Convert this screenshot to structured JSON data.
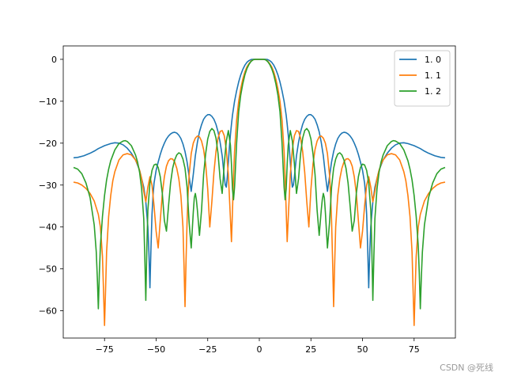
{
  "chart_data": {
    "type": "line",
    "xlim": [
      -95,
      95
    ],
    "ylim": [
      -66.5,
      3.2
    ],
    "xticks": [
      -75,
      -50,
      -25,
      0,
      25,
      50,
      75
    ],
    "yticks": [
      0,
      -10,
      -20,
      -30,
      -40,
      -50,
      -60
    ],
    "xtick_labels": [
      "−75",
      "−50",
      "−25",
      "0",
      "25",
      "50",
      "75"
    ],
    "ytick_labels": [
      "0",
      "−10",
      "−20",
      "−30",
      "−40",
      "−50",
      "−60"
    ],
    "legend_placement": "top-right",
    "grid": false,
    "series": [
      {
        "name": "1. 0",
        "color": "#1f77b4",
        "x": [
          -90,
          -88,
          -85,
          -82,
          -80,
          -78,
          -75,
          -72,
          -70,
          -68,
          -66,
          -64,
          -62,
          -60,
          -58,
          -56,
          -55,
          -54,
          -53.5,
          -53,
          -52.5,
          -52,
          -51.5,
          -51,
          -50,
          -49,
          -48,
          -47,
          -46,
          -45,
          -44,
          -43,
          -42,
          -41,
          -40,
          -39,
          -38,
          -37,
          -36,
          -35,
          -34,
          -33,
          -32,
          -31,
          -30,
          -29,
          -28,
          -27,
          -26,
          -25,
          -24,
          -23,
          -22,
          -21,
          -20,
          -19,
          -18,
          -17,
          -16.5,
          -16,
          -15.5,
          -15,
          -14.5,
          -14,
          -13.5,
          -13,
          -12,
          -11,
          -10,
          -9,
          -8,
          -7,
          -6,
          -5,
          -4,
          -3,
          -2,
          -1,
          0,
          1,
          2,
          3,
          4,
          5,
          6,
          7,
          8,
          9,
          10,
          11,
          12,
          13,
          13.5,
          14,
          14.5,
          15,
          15.5,
          16,
          16.5,
          17,
          18,
          19,
          20,
          21,
          22,
          23,
          24,
          25,
          26,
          27,
          28,
          29,
          30,
          31,
          32,
          33,
          34,
          35,
          36,
          37,
          38,
          39,
          40,
          41,
          42,
          43,
          44,
          45,
          46,
          47,
          48,
          49,
          50,
          51,
          51.5,
          52,
          52.5,
          53,
          53.5,
          54,
          55,
          56,
          58,
          60,
          62,
          64,
          66,
          68,
          70,
          72,
          75,
          78,
          80,
          82,
          85,
          88,
          90
        ],
        "y": [
          -23.5,
          -23.4,
          -23.0,
          -22.4,
          -21.9,
          -21.3,
          -20.6,
          -20.1,
          -19.9,
          -20.0,
          -20.4,
          -21.2,
          -22.4,
          -24.0,
          -26.5,
          -30.5,
          -34.0,
          -40.0,
          -46.0,
          -54.5,
          -45.0,
          -37.0,
          -32.5,
          -29.5,
          -26.5,
          -24.5,
          -22.7,
          -21.2,
          -20.0,
          -19.0,
          -18.3,
          -17.8,
          -17.5,
          -17.4,
          -17.6,
          -18.1,
          -18.9,
          -20.2,
          -22.0,
          -24.5,
          -28.0,
          -31.5,
          -27.5,
          -23.0,
          -19.8,
          -17.3,
          -15.6,
          -14.3,
          -13.6,
          -13.2,
          -13.2,
          -13.6,
          -14.3,
          -15.5,
          -17.3,
          -19.8,
          -23.0,
          -28.0,
          -30.0,
          -30.5,
          -28.0,
          -24.5,
          -21.0,
          -18.0,
          -15.5,
          -13.3,
          -10.0,
          -7.5,
          -5.4,
          -3.7,
          -2.4,
          -1.4,
          -0.7,
          -0.3,
          -0.05,
          0.0,
          0.0,
          0.0,
          0.0,
          0.0,
          0.0,
          0.0,
          -0.05,
          -0.3,
          -0.7,
          -1.4,
          -2.4,
          -3.7,
          -5.4,
          -7.5,
          -10.0,
          -13.3,
          -15.5,
          -18.0,
          -21.0,
          -24.5,
          -28.0,
          -30.5,
          -30.0,
          -28.0,
          -23.0,
          -19.8,
          -17.3,
          -15.5,
          -14.3,
          -13.6,
          -13.2,
          -13.2,
          -13.6,
          -14.3,
          -15.6,
          -17.3,
          -19.8,
          -23.0,
          -27.5,
          -31.5,
          -28.0,
          -24.5,
          -22.0,
          -20.2,
          -18.9,
          -18.1,
          -17.6,
          -17.4,
          -17.5,
          -17.8,
          -18.3,
          -19.0,
          -20.0,
          -21.2,
          -22.7,
          -24.5,
          -26.5,
          -29.5,
          -32.5,
          -37.0,
          -45.0,
          -54.5,
          -46.0,
          -40.0,
          -34.0,
          -30.5,
          -26.5,
          -24.0,
          -22.4,
          -21.2,
          -20.4,
          -20.0,
          -19.9,
          -20.1,
          -20.6,
          -21.3,
          -21.9,
          -22.4,
          -23.0,
          -23.4,
          -23.5
        ]
      },
      {
        "name": "1. 1",
        "color": "#ff7f0e",
        "x": [
          -90,
          -88,
          -86,
          -84,
          -82,
          -80,
          -78,
          -77,
          -76,
          -75.5,
          -75,
          -74.5,
          -74,
          -73,
          -72,
          -71,
          -70,
          -68,
          -66,
          -64,
          -62,
          -60,
          -59,
          -58,
          -57,
          -56,
          -55,
          -54,
          -53,
          -52,
          -51,
          -50,
          -49,
          -48,
          -47,
          -46,
          -45,
          -44,
          -43,
          -42,
          -41,
          -40,
          -39,
          -38,
          -37,
          -36.5,
          -36,
          -35.5,
          -35,
          -34.5,
          -34,
          -33,
          -32,
          -31,
          -30,
          -29,
          -28,
          -27,
          -26,
          -25,
          -24,
          -23,
          -22,
          -21,
          -20,
          -19,
          -18,
          -17,
          -16,
          -15,
          -14,
          -13.5,
          -13,
          -12.5,
          -12,
          -11,
          -10,
          -9,
          -8,
          -7,
          -6,
          -5,
          -4,
          -3,
          -2,
          -1,
          0,
          1,
          2,
          3,
          4,
          5,
          6,
          7,
          8,
          9,
          10,
          11,
          12,
          12.5,
          13,
          13.5,
          14,
          15,
          16,
          17,
          18,
          19,
          20,
          21,
          22,
          23,
          24,
          25,
          26,
          27,
          28,
          29,
          30,
          31,
          32,
          33,
          34,
          34.5,
          35,
          35.5,
          36,
          36.5,
          37,
          38,
          39,
          40,
          41,
          42,
          43,
          44,
          45,
          46,
          47,
          48,
          49,
          50,
          51,
          52,
          53,
          54,
          55,
          56,
          57,
          58,
          59,
          60,
          62,
          64,
          66,
          68,
          70,
          71,
          72,
          73,
          74,
          74.5,
          75,
          75.5,
          76,
          77,
          78,
          80,
          82,
          84,
          86,
          88,
          90
        ],
        "y": [
          -29.3,
          -29.5,
          -30.0,
          -30.8,
          -32.0,
          -33.8,
          -37.0,
          -40.0,
          -47.0,
          -55.0,
          -63.5,
          -55.0,
          -46.0,
          -37.5,
          -32.5,
          -29.0,
          -26.8,
          -24.0,
          -22.8,
          -22.5,
          -22.8,
          -24.0,
          -25.0,
          -26.5,
          -28.5,
          -31.5,
          -34.0,
          -30.5,
          -28.0,
          -30.0,
          -35.0,
          -41.0,
          -45.0,
          -38.5,
          -32.0,
          -28.0,
          -25.5,
          -24.2,
          -23.7,
          -23.8,
          -24.5,
          -26.0,
          -28.5,
          -32.5,
          -40.0,
          -49.0,
          -59.0,
          -48.0,
          -38.5,
          -32.0,
          -27.5,
          -22.5,
          -20.0,
          -18.8,
          -18.3,
          -18.5,
          -19.5,
          -21.5,
          -25.0,
          -31.0,
          -40.0,
          -34.0,
          -27.0,
          -22.0,
          -18.8,
          -17.2,
          -17.0,
          -18.2,
          -21.5,
          -27.5,
          -38.0,
          -43.5,
          -36.0,
          -28.0,
          -22.0,
          -14.5,
          -10.0,
          -7.0,
          -4.7,
          -3.0,
          -1.8,
          -1.0,
          -0.4,
          -0.1,
          0.0,
          0.0,
          0.0,
          0.0,
          0.0,
          -0.1,
          -0.4,
          -1.0,
          -1.8,
          -3.0,
          -4.7,
          -7.0,
          -10.0,
          -14.5,
          -22.0,
          -28.0,
          -36.0,
          -43.5,
          -38.0,
          -27.5,
          -21.5,
          -18.2,
          -17.0,
          -17.2,
          -18.8,
          -22.0,
          -27.0,
          -34.0,
          -40.0,
          -31.0,
          -25.0,
          -21.5,
          -19.5,
          -18.5,
          -18.3,
          -18.8,
          -20.0,
          -22.5,
          -27.5,
          -32.0,
          -38.5,
          -48.0,
          -59.0,
          -49.0,
          -40.0,
          -32.5,
          -28.5,
          -26.0,
          -24.5,
          -23.8,
          -23.7,
          -24.2,
          -25.5,
          -28.0,
          -32.0,
          -38.5,
          -45.0,
          -41.0,
          -35.0,
          -30.0,
          -28.0,
          -30.5,
          -34.0,
          -31.5,
          -28.5,
          -26.5,
          -25.0,
          -24.0,
          -22.8,
          -22.5,
          -22.8,
          -24.0,
          -26.8,
          -29.0,
          -32.5,
          -37.5,
          -46.0,
          -55.0,
          -63.5,
          -55.0,
          -47.0,
          -40.0,
          -37.0,
          -33.8,
          -32.0,
          -30.8,
          -30.0,
          -29.5,
          -29.3
        ]
      },
      {
        "name": "1. 2",
        "color": "#2ca02c",
        "x": [
          -90,
          -88,
          -86,
          -84,
          -82,
          -80,
          -79,
          -78.5,
          -78,
          -77.5,
          -77,
          -76,
          -75,
          -74,
          -73,
          -72,
          -70,
          -68,
          -66,
          -65,
          -64,
          -62,
          -60,
          -59,
          -58,
          -57,
          -56,
          -55.5,
          -55,
          -54.5,
          -54,
          -53,
          -52,
          -51,
          -50,
          -49,
          -48,
          -47,
          -46,
          -45,
          -44,
          -43,
          -42,
          -41,
          -40,
          -39,
          -38,
          -37,
          -36,
          -35,
          -34,
          -33,
          -32,
          -31.5,
          -31,
          -30.5,
          -30,
          -29,
          -28,
          -27,
          -26,
          -25,
          -24,
          -23,
          -22,
          -21,
          -20,
          -19,
          -18,
          -17,
          -16,
          -15,
          -14,
          -13.5,
          -13,
          -12.5,
          -12,
          -11,
          -10,
          -9,
          -8,
          -7,
          -6,
          -5,
          -4,
          -3,
          -2,
          -1,
          0,
          1,
          2,
          3,
          4,
          5,
          6,
          7,
          8,
          9,
          10,
          11,
          12,
          12.5,
          13,
          13.5,
          14,
          15,
          16,
          17,
          18,
          19,
          20,
          21,
          22,
          23,
          24,
          25,
          26,
          27,
          28,
          29,
          30,
          30.5,
          31,
          31.5,
          32,
          33,
          34,
          35,
          36,
          37,
          38,
          39,
          40,
          41,
          42,
          43,
          44,
          45,
          46,
          47,
          48,
          49,
          50,
          51,
          52,
          53,
          54,
          54.5,
          55,
          55.5,
          56,
          57,
          58,
          59,
          60,
          62,
          64,
          65,
          66,
          68,
          70,
          72,
          73,
          74,
          75,
          76,
          77,
          77.5,
          78,
          78.5,
          79,
          80,
          82,
          84,
          86,
          88,
          90
        ],
        "y": [
          -25.8,
          -26.2,
          -27.3,
          -29.5,
          -33.0,
          -39.5,
          -46.0,
          -52.0,
          -59.5,
          -51.0,
          -44.5,
          -37.5,
          -32.5,
          -28.8,
          -26.2,
          -24.2,
          -21.6,
          -20.1,
          -19.5,
          -19.4,
          -19.6,
          -20.6,
          -22.8,
          -24.5,
          -27.0,
          -31.0,
          -38.0,
          -47.0,
          -57.5,
          -45.0,
          -36.0,
          -29.5,
          -26.5,
          -25.2,
          -25.0,
          -25.8,
          -28.0,
          -32.0,
          -38.5,
          -41.0,
          -35.0,
          -29.5,
          -26.0,
          -24.0,
          -22.8,
          -22.3,
          -22.6,
          -23.8,
          -26.0,
          -30.5,
          -39.0,
          -45.0,
          -36.5,
          -33.0,
          -32.0,
          -33.5,
          -36.0,
          -42.0,
          -36.0,
          -27.5,
          -22.5,
          -19.0,
          -17.2,
          -16.5,
          -17.0,
          -18.8,
          -22.5,
          -28.5,
          -32.0,
          -25.0,
          -19.5,
          -17.0,
          -20.5,
          -25.0,
          -31.0,
          -33.5,
          -30.5,
          -20.0,
          -12.5,
          -8.5,
          -5.8,
          -3.7,
          -2.2,
          -1.2,
          -0.5,
          -0.1,
          0.0,
          0.0,
          0.0,
          0.0,
          0.0,
          -0.1,
          -0.5,
          -1.2,
          -2.2,
          -3.7,
          -5.8,
          -8.5,
          -12.5,
          -20.0,
          -30.5,
          -33.5,
          -31.0,
          -25.0,
          -20.5,
          -17.0,
          -19.5,
          -25.0,
          -32.0,
          -28.5,
          -22.5,
          -18.8,
          -17.0,
          -16.5,
          -17.2,
          -19.0,
          -22.5,
          -27.5,
          -36.0,
          -42.0,
          -36.0,
          -33.5,
          -32.0,
          -33.0,
          -36.5,
          -45.0,
          -39.0,
          -30.5,
          -26.0,
          -23.8,
          -22.6,
          -22.3,
          -22.8,
          -24.0,
          -26.0,
          -29.5,
          -35.0,
          -41.0,
          -38.5,
          -32.0,
          -28.0,
          -25.8,
          -25.0,
          -25.2,
          -26.5,
          -29.5,
          -36.0,
          -45.0,
          -57.5,
          -47.0,
          -38.0,
          -31.0,
          -27.0,
          -24.5,
          -22.8,
          -20.6,
          -19.6,
          -19.4,
          -19.5,
          -20.1,
          -21.6,
          -24.2,
          -26.2,
          -28.8,
          -32.5,
          -37.5,
          -44.5,
          -51.0,
          -59.5,
          -52.0,
          -46.0,
          -39.5,
          -33.0,
          -29.5,
          -27.3,
          -26.2,
          -25.8
        ]
      }
    ]
  },
  "watermark": "CSDN @死线"
}
